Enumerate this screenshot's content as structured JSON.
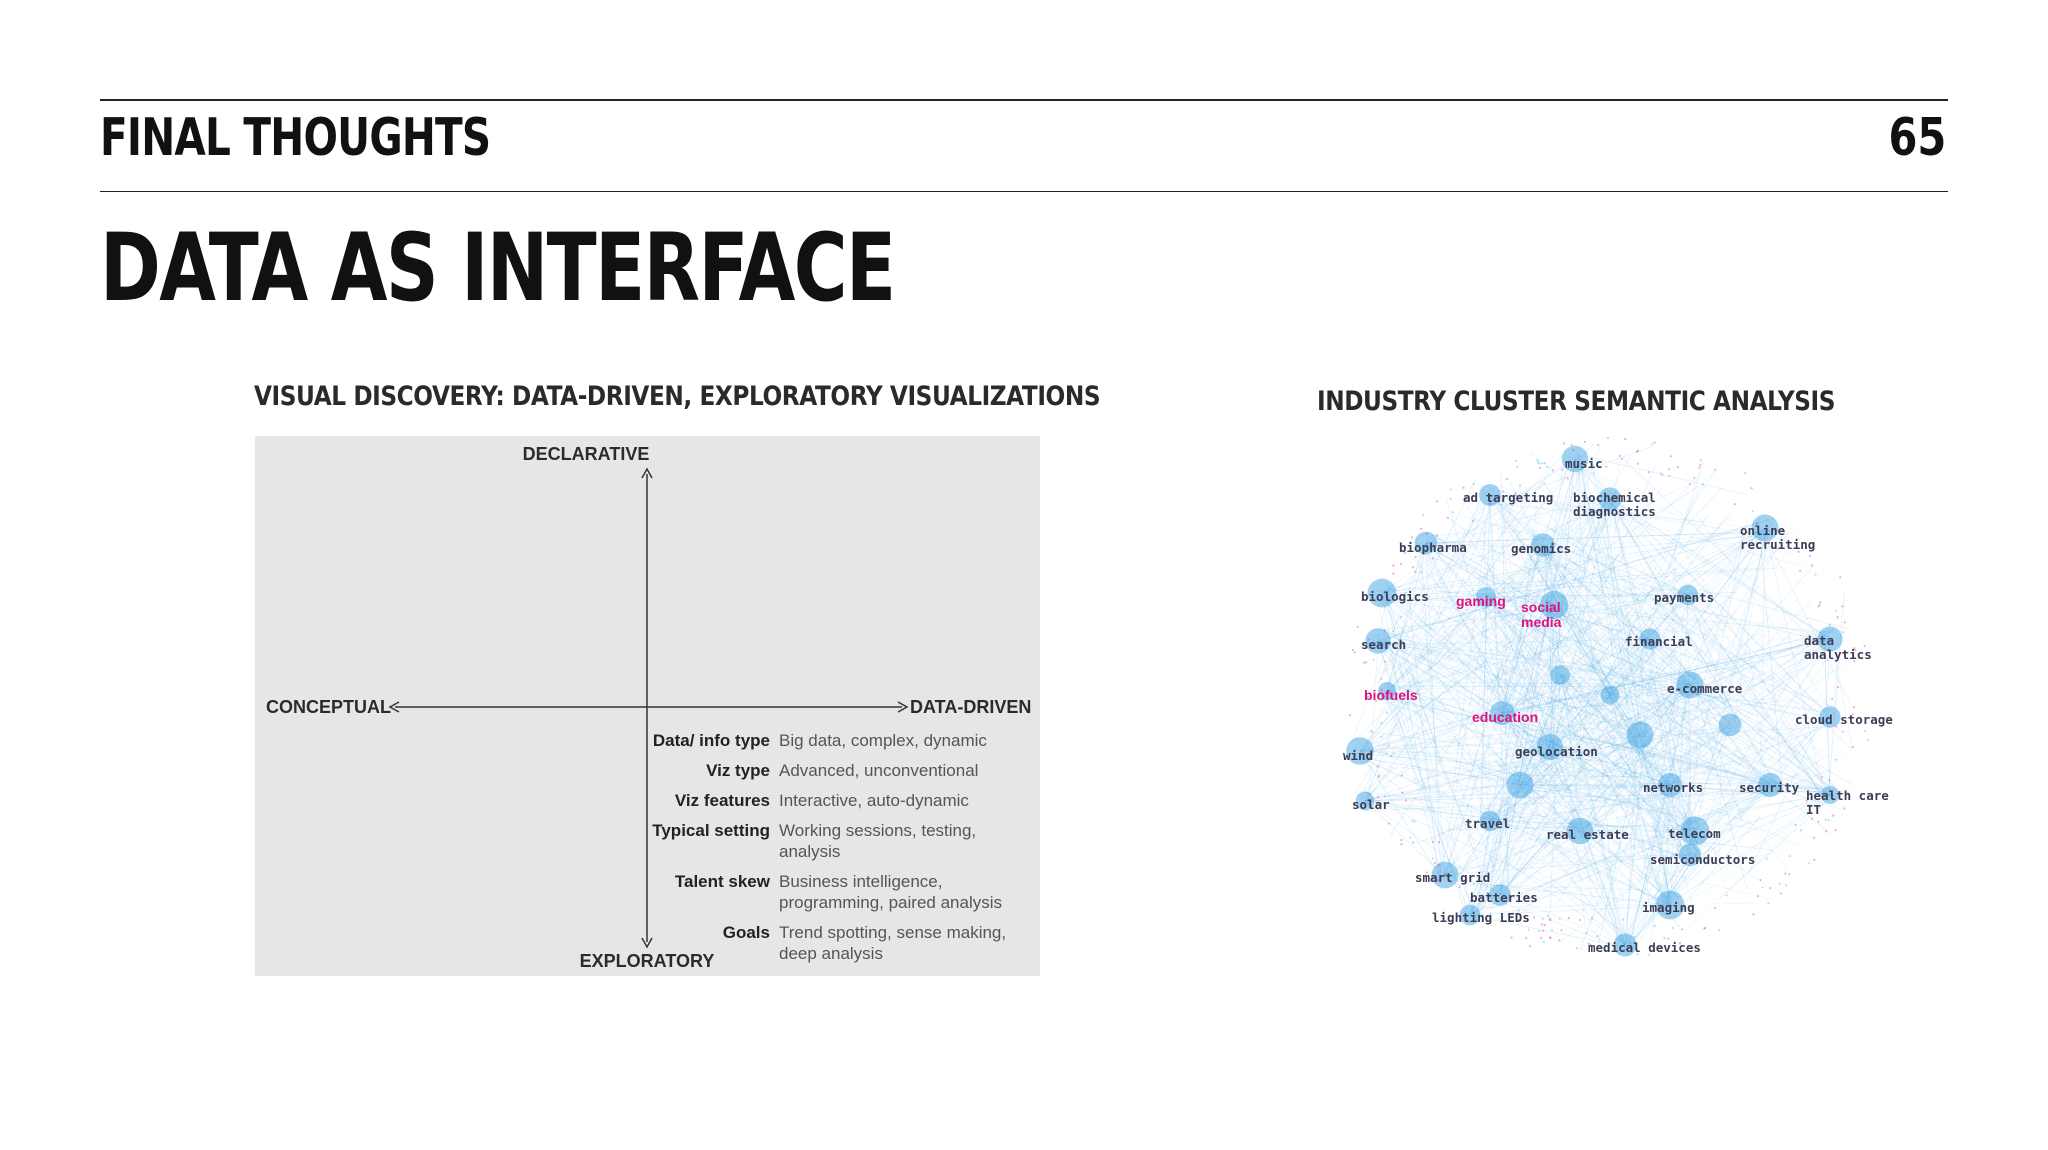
{
  "header": {
    "section": "FINAL THOUGHTS",
    "page_number": "65"
  },
  "title": "DATA AS INTERFACE",
  "figure_left": {
    "title": "VISUAL DISCOVERY: DATA-DRIVEN, EXPLORATORY VISUALIZATIONS",
    "axes": {
      "top": "DECLARATIVE",
      "bottom": "EXPLORATORY",
      "left": "CONCEPTUAL",
      "right": "DATA-DRIVEN"
    },
    "rows": [
      {
        "label": "Data/ info type",
        "value": "Big data, complex, dynamic"
      },
      {
        "label": "Viz type",
        "value": "Advanced, unconventional"
      },
      {
        "label": "Viz features",
        "value": "Interactive, auto-dynamic"
      },
      {
        "label": "Typical setting",
        "value": "Working sessions, testing, analysis"
      },
      {
        "label": "Talent skew",
        "value": "Business intelligence, programming, paired analysis"
      },
      {
        "label": "Goals",
        "value": "Trend spotting, sense making, deep analysis"
      }
    ]
  },
  "figure_right": {
    "title": "INDUSTRY CLUSTER SEMANTIC ANALYSIS",
    "highlight_color": "#e0137c",
    "edge_color": "#2e9be0",
    "words": {
      "music": "music",
      "ad_targeting": "ad targeting",
      "biochemical_diagnostics": "biochemical\ndiagnostics",
      "online_recruiting": "online\nrecruiting",
      "biopharma": "biopharma",
      "genomics": "genomics",
      "biologics": "biologics",
      "gaming": "gaming",
      "social_media": "social\nmedia",
      "payments": "payments",
      "search": "search",
      "financial": "financial",
      "data_analytics": "data\nanalytics",
      "biofuels": "biofuels",
      "e_commerce": "e-commerce",
      "education": "education",
      "cloud_storage": "cloud storage",
      "wind": "wind",
      "geolocation": "geolocation",
      "solar": "solar",
      "networks": "networks",
      "security": "security",
      "health_care_it": "health care\nIT",
      "travel": "travel",
      "real_estate": "real estate",
      "telecom": "telecom",
      "semiconductors": "semiconductors",
      "smart_grid": "smart grid",
      "batteries": "batteries",
      "lighting_leds": "lighting LEDs",
      "imaging": "imaging",
      "medical_devices": "medical devices"
    }
  }
}
